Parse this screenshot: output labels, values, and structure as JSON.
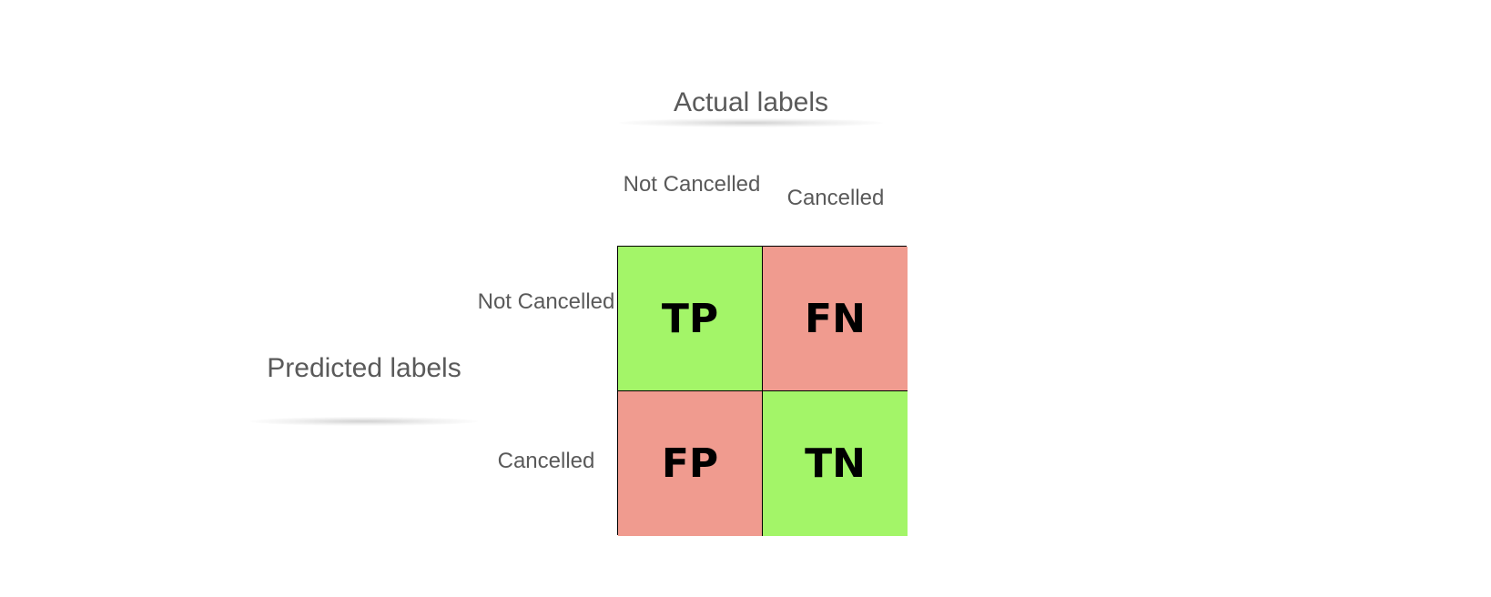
{
  "colors": {
    "correct": "#a3f568",
    "incorrect": "#f09b8f",
    "label_text": "#5a5a5a",
    "cell_text": "#000000"
  },
  "actual_axis": {
    "title": "Actual labels",
    "labels": [
      "Not Cancelled",
      "Cancelled"
    ]
  },
  "predicted_axis": {
    "title": "Predicted labels",
    "labels": [
      "Not Cancelled",
      "Cancelled"
    ]
  },
  "matrix": {
    "cells": [
      [
        "TP",
        "FN"
      ],
      [
        "FP",
        "TN"
      ]
    ]
  }
}
